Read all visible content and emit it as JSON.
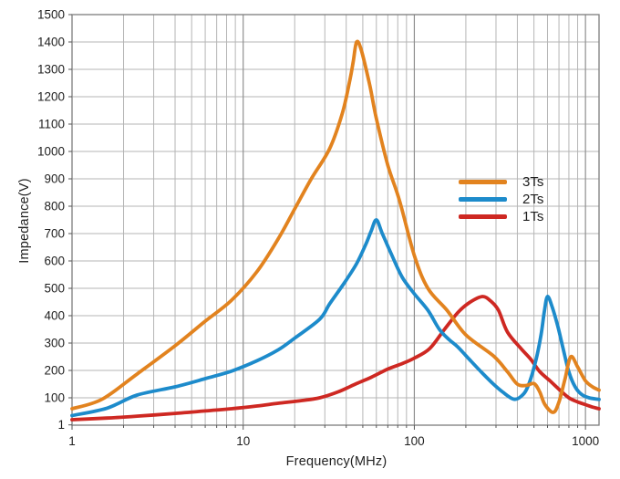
{
  "chart_data": {
    "type": "line",
    "title": "",
    "xlabel": "Frequency(MHz)",
    "ylabel": "Impedance(V)",
    "x_scale": "log",
    "xlim": [
      1,
      1200
    ],
    "ylim": [
      0,
      1500
    ],
    "x_ticks": [
      1,
      10,
      100,
      1000
    ],
    "y_ticks": [
      1,
      100,
      200,
      300,
      400,
      500,
      600,
      700,
      800,
      900,
      1000,
      1100,
      1200,
      1300,
      1400,
      1500
    ],
    "grid": "major horizontal every 100, log minor vertical, on",
    "legend_position": "inside right-center, no border",
    "colors": {
      "grid_minor": "#b5b5b5",
      "grid_major": "#8f8f8f",
      "frame": "#7d7d7d",
      "tick": "#555555",
      "text": "#1f1f1f",
      "background": "#ffffff"
    },
    "series": [
      {
        "name": "3Ts",
        "color": "#E2831F",
        "points": [
          [
            1,
            60
          ],
          [
            1.5,
            95
          ],
          [
            2.4,
            187
          ],
          [
            4,
            290
          ],
          [
            6,
            380
          ],
          [
            8.5,
            455
          ],
          [
            12,
            560
          ],
          [
            16,
            680
          ],
          [
            20,
            790
          ],
          [
            25,
            900
          ],
          [
            32,
            1010
          ],
          [
            38,
            1140
          ],
          [
            42,
            1260
          ],
          [
            44,
            1330
          ],
          [
            46,
            1400
          ],
          [
            49,
            1370
          ],
          [
            55,
            1240
          ],
          [
            60,
            1120
          ],
          [
            70,
            950
          ],
          [
            82,
            820
          ],
          [
            100,
            620
          ],
          [
            120,
            500
          ],
          [
            155,
            420
          ],
          [
            200,
            330
          ],
          [
            290,
            253
          ],
          [
            350,
            195
          ],
          [
            400,
            150
          ],
          [
            450,
            145
          ],
          [
            500,
            152
          ],
          [
            540,
            122
          ],
          [
            580,
            75
          ],
          [
            650,
            47
          ],
          [
            700,
            85
          ],
          [
            760,
            170
          ],
          [
            820,
            250
          ],
          [
            900,
            213
          ],
          [
            1000,
            162
          ],
          [
            1100,
            140
          ],
          [
            1200,
            128
          ]
        ]
      },
      {
        "name": "2Ts",
        "color": "#1D8BCB",
        "points": [
          [
            1,
            35
          ],
          [
            1.6,
            62
          ],
          [
            2.4,
            110
          ],
          [
            4,
            140
          ],
          [
            6,
            170
          ],
          [
            8.5,
            197
          ],
          [
            12,
            235
          ],
          [
            16,
            275
          ],
          [
            20,
            318
          ],
          [
            28,
            387
          ],
          [
            32,
            443
          ],
          [
            39,
            520
          ],
          [
            46,
            590
          ],
          [
            52,
            660
          ],
          [
            56,
            710
          ],
          [
            60,
            750
          ],
          [
            65,
            700
          ],
          [
            74,
            620
          ],
          [
            85,
            540
          ],
          [
            100,
            480
          ],
          [
            120,
            420
          ],
          [
            140,
            350
          ],
          [
            160,
            312
          ],
          [
            180,
            285
          ],
          [
            210,
            240
          ],
          [
            250,
            190
          ],
          [
            290,
            150
          ],
          [
            330,
            120
          ],
          [
            380,
            95
          ],
          [
            420,
            105
          ],
          [
            460,
            140
          ],
          [
            510,
            230
          ],
          [
            550,
            330
          ],
          [
            575,
            415
          ],
          [
            600,
            470
          ],
          [
            640,
            430
          ],
          [
            690,
            360
          ],
          [
            740,
            280
          ],
          [
            800,
            195
          ],
          [
            870,
            140
          ],
          [
            950,
            112
          ],
          [
            1050,
            100
          ],
          [
            1200,
            94
          ]
        ]
      },
      {
        "name": "1Ts",
        "color": "#CE2822",
        "points": [
          [
            1,
            20
          ],
          [
            1.6,
            26
          ],
          [
            2.4,
            33
          ],
          [
            4,
            43
          ],
          [
            6,
            52
          ],
          [
            8.5,
            60
          ],
          [
            12,
            70
          ],
          [
            16,
            80
          ],
          [
            22,
            90
          ],
          [
            28,
            100
          ],
          [
            36,
            122
          ],
          [
            46,
            152
          ],
          [
            56,
            175
          ],
          [
            70,
            205
          ],
          [
            85,
            225
          ],
          [
            100,
            245
          ],
          [
            123,
            280
          ],
          [
            150,
            350
          ],
          [
            180,
            412
          ],
          [
            210,
            448
          ],
          [
            250,
            470
          ],
          [
            280,
            453
          ],
          [
            310,
            420
          ],
          [
            350,
            340
          ],
          [
            420,
            280
          ],
          [
            480,
            240
          ],
          [
            540,
            196
          ],
          [
            620,
            162
          ],
          [
            700,
            131
          ],
          [
            800,
            100
          ],
          [
            900,
            85
          ],
          [
            1000,
            75
          ],
          [
            1100,
            66
          ],
          [
            1200,
            60
          ]
        ]
      }
    ]
  }
}
